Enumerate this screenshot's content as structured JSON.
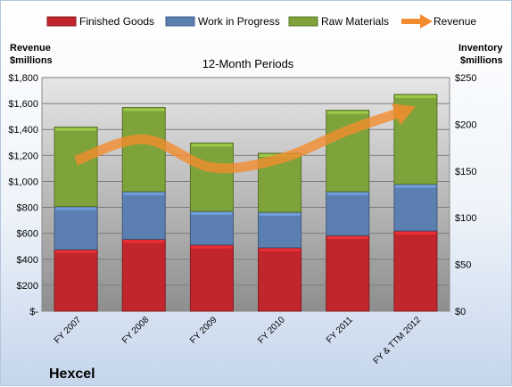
{
  "chart_data": {
    "type": "bar",
    "stacked": true,
    "title": "12-Month Periods",
    "company": "Hexcel",
    "categories": [
      "FY 2007",
      "FY 2008",
      "FY 2009",
      "FY 2010",
      "FY 2011",
      "FY & TTM 2012"
    ],
    "left_axis": {
      "label_line1": "Revenue",
      "label_line2": "$millions",
      "range": [
        0,
        1800
      ],
      "ticks": [
        0,
        200,
        400,
        600,
        800,
        1000,
        1200,
        1400,
        1600,
        1800
      ],
      "tick_labels": [
        "$-",
        "$200",
        "$400",
        "$600",
        "$800",
        "$1,000",
        "$1,200",
        "$1,400",
        "$1,600",
        "$1,800"
      ]
    },
    "right_axis": {
      "label_line1": "Inventory",
      "label_line2": "$millions",
      "range": [
        0,
        250
      ],
      "ticks": [
        0,
        50,
        100,
        150,
        200,
        250
      ],
      "tick_labels": [
        "$0",
        "$50",
        "$100",
        "$150",
        "$200",
        "$250"
      ]
    },
    "series": [
      {
        "name": "Finished Goods",
        "axis": "right",
        "kind": "bar",
        "color": "#c0262b",
        "values": [
          66,
          77,
          71,
          68,
          81,
          86
        ]
      },
      {
        "name": "Work in Progress",
        "axis": "right",
        "kind": "bar",
        "color": "#5b7fb1",
        "values": [
          46,
          51,
          36,
          38,
          47,
          50
        ]
      },
      {
        "name": "Raw Materials",
        "axis": "right",
        "kind": "bar",
        "color": "#7ea33b",
        "values": [
          85,
          90,
          73,
          63,
          87,
          96
        ]
      },
      {
        "name": "Revenue",
        "axis": "left",
        "kind": "line",
        "color": "#f28c2e",
        "values": [
          1160,
          1325,
          1108,
          1174,
          1392,
          1578
        ]
      }
    ],
    "legend_position": "top",
    "grid": true
  }
}
